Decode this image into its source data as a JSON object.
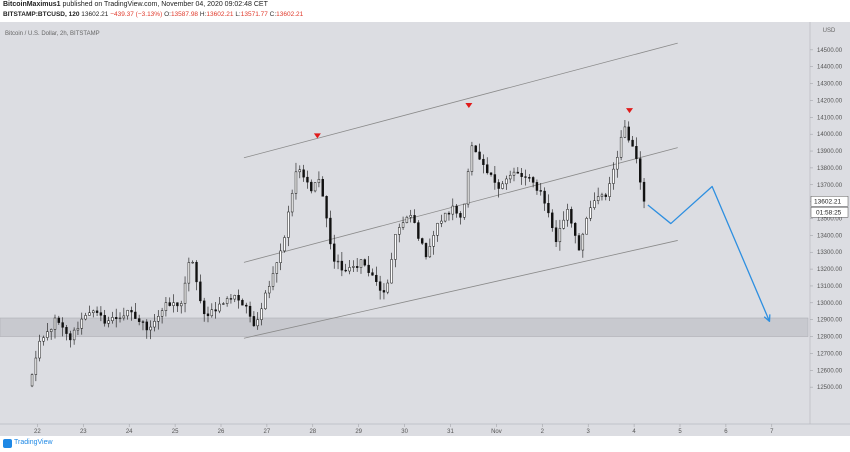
{
  "header": {
    "author": "BitcoinMaximus1",
    "published_text": "published on TradingView.com, November 04, 2020 09:02:48 CET",
    "symbol": "BITSTAMP:BTCUSD, 120",
    "last": "13602.21",
    "change": "−439.37 (−3.13%)",
    "o_label": "O:",
    "o_value": "13587.98",
    "h_label": "H:",
    "h_value": "13602.21",
    "l_label": "L:",
    "l_value": "13571.77",
    "c_label": "C:",
    "c_value": "13602.21"
  },
  "chart_title": "Bitcoin / U.S. Dollar, 2h, BITSTAMP",
  "footer": {
    "brand": "TradingView"
  },
  "colors": {
    "background": "#dcdde2",
    "candle": "#111111",
    "channel": "#8a8a8a",
    "zone": "#c4c5cb",
    "projection": "#2e8fe0",
    "top_marker": "#e01b1b"
  },
  "chart_data": {
    "type": "candlestick",
    "title": "Bitcoin / U.S. Dollar, 2h, BITSTAMP",
    "currency": "USD",
    "ylim": [
      12400,
      14600
    ],
    "y_ticks": [
      12500,
      12600,
      12700,
      12800,
      12900,
      13000,
      13100,
      13200,
      13300,
      13400,
      13500,
      13600,
      13700,
      13800,
      13900,
      14000,
      14100,
      14200,
      14300,
      14400,
      14500
    ],
    "y_tick_labels": [
      "12500.00",
      "12600.00",
      "12700.00",
      "12800.00",
      "12900.00",
      "13000.00",
      "13100.00",
      "13200.00",
      "13300.00",
      "13400.00",
      "13500.00",
      "13600.00",
      "13700.00",
      "13800.00",
      "13900.00",
      "14000.00",
      "14100.00",
      "14200.00",
      "14300.00",
      "14400.00",
      "14500.00"
    ],
    "x_range": [
      21.5,
      8.1
    ],
    "x_ticks": [
      {
        "label": "22",
        "day": 22
      },
      {
        "label": "23",
        "day": 23
      },
      {
        "label": "24",
        "day": 24
      },
      {
        "label": "25",
        "day": 25
      },
      {
        "label": "26",
        "day": 26
      },
      {
        "label": "27",
        "day": 27
      },
      {
        "label": "28",
        "day": 28
      },
      {
        "label": "29",
        "day": 29
      },
      {
        "label": "30",
        "day": 30
      },
      {
        "label": "31",
        "day": 31
      },
      {
        "label": "Nov",
        "day": 32
      },
      {
        "label": "2",
        "day": 33
      },
      {
        "label": "3",
        "day": 34
      },
      {
        "label": "4",
        "day": 35
      },
      {
        "label": "5",
        "day": 36
      },
      {
        "label": "6",
        "day": 37
      },
      {
        "label": "7",
        "day": 38
      }
    ],
    "last_price": "13602.21",
    "countdown": "01:58:25",
    "anchors": [
      [
        21.8,
        12500
      ],
      [
        22.05,
        12750
      ],
      [
        22.4,
        12900
      ],
      [
        22.7,
        12780
      ],
      [
        23.1,
        12960
      ],
      [
        23.5,
        12890
      ],
      [
        24.0,
        12940
      ],
      [
        24.4,
        12850
      ],
      [
        24.8,
        12980
      ],
      [
        25.15,
        13000
      ],
      [
        25.35,
        13300
      ],
      [
        25.6,
        12920
      ],
      [
        26.0,
        12990
      ],
      [
        26.3,
        13050
      ],
      [
        26.55,
        12960
      ],
      [
        26.75,
        12870
      ],
      [
        27.05,
        13120
      ],
      [
        27.35,
        13350
      ],
      [
        27.65,
        13800
      ],
      [
        27.95,
        13680
      ],
      [
        28.15,
        13740
      ],
      [
        28.45,
        13250
      ],
      [
        28.75,
        13180
      ],
      [
        29.05,
        13250
      ],
      [
        29.35,
        13130
      ],
      [
        29.6,
        13030
      ],
      [
        29.8,
        13420
      ],
      [
        30.15,
        13520
      ],
      [
        30.45,
        13280
      ],
      [
        30.75,
        13480
      ],
      [
        31.05,
        13560
      ],
      [
        31.25,
        13500
      ],
      [
        31.45,
        13930
      ],
      [
        31.75,
        13780
      ],
      [
        32.05,
        13700
      ],
      [
        32.4,
        13770
      ],
      [
        32.75,
        13720
      ],
      [
        33.0,
        13650
      ],
      [
        33.3,
        13370
      ],
      [
        33.55,
        13560
      ],
      [
        33.8,
        13330
      ],
      [
        34.1,
        13600
      ],
      [
        34.4,
        13640
      ],
      [
        34.8,
        14050
      ],
      [
        35.05,
        13860
      ],
      [
        35.22,
        13602
      ]
    ],
    "channel_lines": [
      {
        "name": "upper",
        "from": [
          26.5,
          13860
        ],
        "to": [
          35.95,
          14540
        ]
      },
      {
        "name": "middle",
        "from": [
          26.5,
          13240
        ],
        "to": [
          35.95,
          13920
        ]
      },
      {
        "name": "lower",
        "from": [
          26.5,
          12790
        ],
        "to": [
          35.95,
          13370
        ]
      }
    ],
    "support_zone": {
      "from": 12800,
      "to": 12910
    },
    "projection_path": [
      [
        35.3,
        13580
      ],
      [
        35.8,
        13470
      ],
      [
        36.7,
        13690
      ],
      [
        37.95,
        12890
      ]
    ],
    "top_markers": [
      {
        "day": 28.1,
        "price": 13990
      },
      {
        "day": 31.4,
        "price": 14170
      },
      {
        "day": 34.9,
        "price": 14140
      }
    ]
  }
}
